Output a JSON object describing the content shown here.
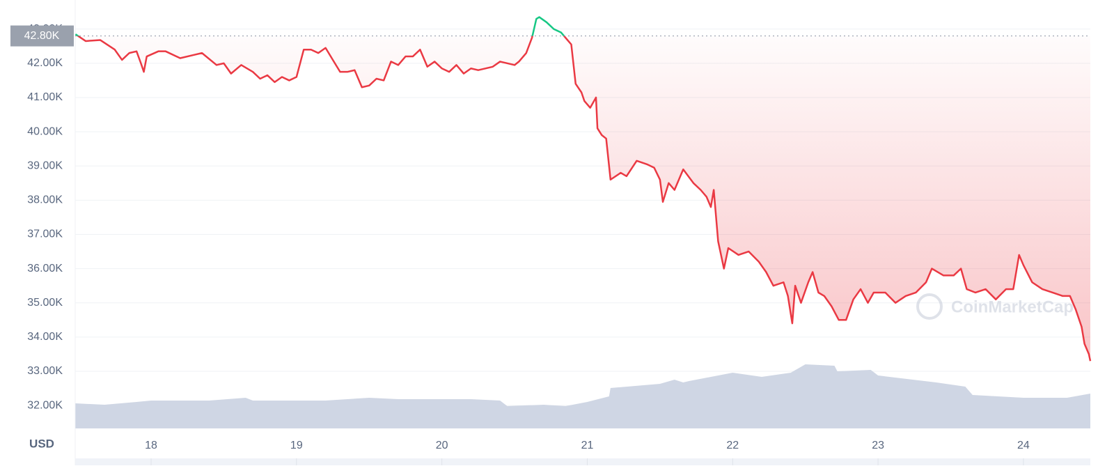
{
  "chart_data": {
    "type": "line",
    "unit_label": "USD",
    "watermark": "CoinMarketCap",
    "xlim": [
      17.478,
      24.46
    ],
    "xticks": [
      18,
      19,
      20,
      21,
      22,
      23,
      24
    ],
    "ylim": [
      31.33,
      43.85
    ],
    "yticks": [
      {
        "value": 32,
        "label": "32.00K"
      },
      {
        "value": 33,
        "label": "33.00K"
      },
      {
        "value": 34,
        "label": "34.00K"
      },
      {
        "value": 35,
        "label": "35.00K"
      },
      {
        "value": 36,
        "label": "36.00K"
      },
      {
        "value": 37,
        "label": "37.00K"
      },
      {
        "value": 38,
        "label": "38.00K"
      },
      {
        "value": 39,
        "label": "39.00K"
      },
      {
        "value": 40,
        "label": "40.00K"
      },
      {
        "value": 41,
        "label": "41.00K"
      },
      {
        "value": 42,
        "label": "42.00K"
      },
      {
        "value": 43,
        "label": "43.00K"
      }
    ],
    "grid": true,
    "baseline": {
      "value": 42.8,
      "label": "42.80K"
    },
    "series": [
      {
        "name": "Price",
        "color": "#ea3943",
        "color_above": "#16c784",
        "x": [
          17.48,
          17.55,
          17.65,
          17.75,
          17.8,
          17.85,
          17.9,
          17.93,
          17.95,
          17.97,
          18.05,
          18.1,
          18.2,
          18.3,
          18.35,
          18.45,
          18.5,
          18.55,
          18.62,
          18.7,
          18.75,
          18.8,
          18.85,
          18.9,
          18.95,
          19.0,
          19.05,
          19.1,
          19.15,
          19.2,
          19.25,
          19.3,
          19.35,
          19.4,
          19.45,
          19.5,
          19.55,
          19.6,
          19.65,
          19.7,
          19.75,
          19.8,
          19.85,
          19.9,
          19.95,
          20.0,
          20.05,
          20.1,
          20.15,
          20.2,
          20.25,
          20.35,
          20.4,
          20.5,
          20.53,
          20.58,
          20.62,
          20.65,
          20.67,
          20.72,
          20.77,
          20.82,
          20.85,
          20.89,
          20.92,
          20.96,
          20.98,
          21.02,
          21.06,
          21.07,
          21.1,
          21.13,
          21.16,
          21.23,
          21.27,
          21.34,
          21.41,
          21.46,
          21.5,
          21.52,
          21.56,
          21.6,
          21.66,
          21.73,
          21.78,
          21.82,
          21.85,
          21.87,
          21.9,
          21.94,
          21.97,
          22.04,
          22.11,
          22.18,
          22.23,
          22.28,
          22.35,
          22.38,
          22.41,
          22.43,
          22.47,
          22.52,
          22.55,
          22.59,
          22.63,
          22.68,
          22.73,
          22.78,
          22.83,
          22.88,
          22.93,
          22.97,
          23.05,
          23.12,
          23.19,
          23.26,
          23.33,
          23.37,
          23.45,
          23.52,
          23.57,
          23.61,
          23.67,
          23.74,
          23.81,
          23.88,
          23.93,
          23.97,
          24.0,
          24.06,
          24.13,
          24.2,
          24.27,
          24.32,
          24.36,
          24.4,
          24.42,
          24.45,
          24.46
        ],
        "values": [
          42.85,
          42.65,
          42.68,
          42.4,
          42.1,
          42.3,
          42.35,
          42.0,
          41.75,
          42.2,
          42.35,
          42.35,
          42.15,
          42.25,
          42.3,
          41.95,
          42.0,
          41.7,
          41.95,
          41.75,
          41.55,
          41.65,
          41.45,
          41.6,
          41.5,
          41.6,
          42.4,
          42.4,
          42.3,
          42.45,
          42.1,
          41.75,
          41.75,
          41.8,
          41.3,
          41.35,
          41.55,
          41.5,
          42.05,
          41.95,
          42.2,
          42.2,
          42.4,
          41.9,
          42.05,
          41.85,
          41.75,
          41.95,
          41.7,
          41.85,
          41.8,
          41.9,
          42.05,
          41.95,
          42.05,
          42.3,
          42.75,
          43.3,
          43.35,
          43.2,
          43.0,
          42.9,
          42.75,
          42.55,
          41.4,
          41.15,
          40.9,
          40.7,
          41.0,
          40.1,
          39.9,
          39.8,
          38.6,
          38.8,
          38.7,
          39.15,
          39.05,
          38.95,
          38.6,
          37.95,
          38.5,
          38.3,
          38.9,
          38.5,
          38.3,
          38.1,
          37.8,
          38.3,
          36.8,
          36.0,
          36.6,
          36.4,
          36.5,
          36.2,
          35.9,
          35.5,
          35.6,
          35.2,
          34.4,
          35.5,
          35.0,
          35.6,
          35.9,
          35.3,
          35.2,
          34.9,
          34.5,
          34.5,
          35.1,
          35.4,
          35.0,
          35.3,
          35.3,
          35.0,
          35.2,
          35.3,
          35.6,
          36.0,
          35.8,
          35.8,
          36.0,
          35.4,
          35.3,
          35.4,
          35.1,
          35.4,
          35.4,
          36.4,
          36.1,
          35.6,
          35.4,
          35.3,
          35.2,
          35.2,
          34.8,
          34.3,
          33.8,
          33.5,
          33.3
        ]
      },
      {
        "name": "Volume",
        "color": "#cfd6e4",
        "ylim": [
          0,
          100
        ],
        "x": [
          17.48,
          17.68,
          17.9,
          18.0,
          18.4,
          18.65,
          18.7,
          19.2,
          19.5,
          19.7,
          20.2,
          20.4,
          20.45,
          20.7,
          20.85,
          21.0,
          21.15,
          21.16,
          21.5,
          21.6,
          21.66,
          21.7,
          22.0,
          22.2,
          22.4,
          22.5,
          22.7,
          22.72,
          22.95,
          23.0,
          23.4,
          23.6,
          23.65,
          24.0,
          24.3,
          24.46
        ],
        "values": [
          18,
          17,
          19,
          20,
          20,
          22,
          20,
          20,
          22,
          21,
          21,
          20,
          16,
          17,
          16,
          19,
          23,
          29,
          32,
          35,
          33,
          34,
          40,
          37,
          40,
          46,
          45,
          41,
          42,
          38,
          33,
          30,
          24,
          22,
          22,
          25
        ]
      }
    ]
  }
}
